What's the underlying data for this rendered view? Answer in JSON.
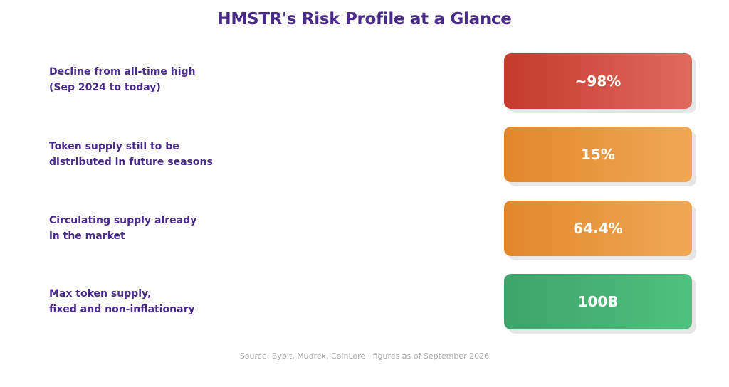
{
  "title": "HMSTR's Risk Profile at a Glance",
  "rows": [
    {
      "label": "Decline from all-time high\n(Sep 2024 to today)",
      "value": "~98%",
      "color": "#c53a2c"
    },
    {
      "label": "Token supply still to be\ndistributed in future seasons",
      "value": "15%",
      "color": "#e2882a"
    },
    {
      "label": "Circulating supply already\nin the market",
      "value": "64.4%",
      "color": "#e2882a"
    },
    {
      "label": "Max token supply,\nfixed and non-inflationary",
      "value": "100B",
      "color": "#3ea46a"
    }
  ],
  "source": "Source: Bybit, Mudrex, CoinLore · figures as of September 2026"
}
